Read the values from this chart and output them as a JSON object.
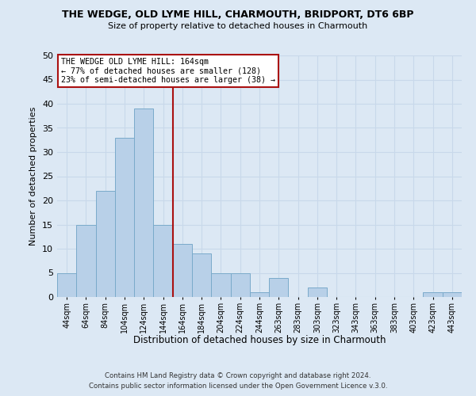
{
  "title": "THE WEDGE, OLD LYME HILL, CHARMOUTH, BRIDPORT, DT6 6BP",
  "subtitle": "Size of property relative to detached houses in Charmouth",
  "xlabel": "Distribution of detached houses by size in Charmouth",
  "ylabel": "Number of detached properties",
  "footer_line1": "Contains HM Land Registry data © Crown copyright and database right 2024.",
  "footer_line2": "Contains public sector information licensed under the Open Government Licence v.3.0.",
  "bin_labels": [
    "44sqm",
    "64sqm",
    "84sqm",
    "104sqm",
    "124sqm",
    "144sqm",
    "164sqm",
    "184sqm",
    "204sqm",
    "224sqm",
    "244sqm",
    "263sqm",
    "283sqm",
    "303sqm",
    "323sqm",
    "343sqm",
    "363sqm",
    "383sqm",
    "403sqm",
    "423sqm",
    "443sqm"
  ],
  "bar_values": [
    5,
    15,
    22,
    33,
    39,
    15,
    11,
    9,
    5,
    5,
    1,
    4,
    0,
    2,
    0,
    0,
    0,
    0,
    0,
    1,
    1
  ],
  "bar_color": "#b8d0e8",
  "bar_edge_color": "#7aaaca",
  "marker_line_color": "#aa1111",
  "annotation_title": "THE WEDGE OLD LYME HILL: 164sqm",
  "annotation_line1": "← 77% of detached houses are smaller (128)",
  "annotation_line2": "23% of semi-detached houses are larger (38) →",
  "annotation_box_color": "#ffffff",
  "annotation_box_edge": "#aa1111",
  "ylim": [
    0,
    50
  ],
  "yticks": [
    0,
    5,
    10,
    15,
    20,
    25,
    30,
    35,
    40,
    45,
    50
  ],
  "grid_color": "#c8d8ea",
  "background_color": "#dce8f4"
}
